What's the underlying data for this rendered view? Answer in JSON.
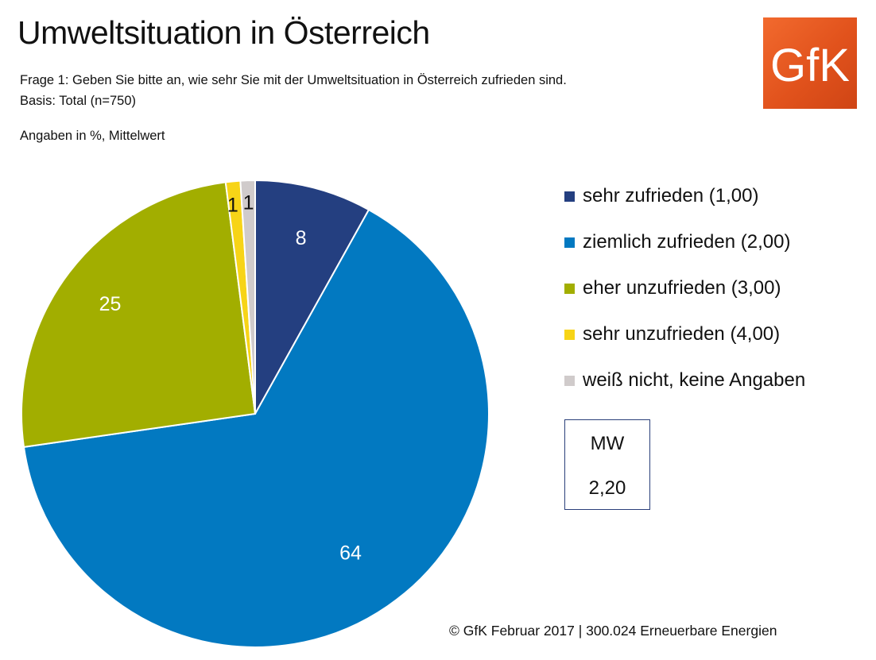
{
  "header": {
    "title": "Umweltsituation in Österreich",
    "question": "Frage 1: Geben Sie bitte an, wie sehr Sie mit der Umweltsituation in Österreich zufrieden sind.",
    "basis": "Basis: Total (n=750)",
    "units_note": "Angaben in %, Mittelwert"
  },
  "logo": {
    "text": "GfK",
    "color": "#e35a21"
  },
  "chart_data": {
    "type": "pie",
    "title": "Umweltsituation in Österreich",
    "units": "%",
    "start_angle_deg": 0,
    "direction": "clockwise",
    "slices": [
      {
        "label": "sehr zufrieden (1,00)",
        "value": 8,
        "display": "8",
        "color": "#243f80",
        "label_color": "#ffffff"
      },
      {
        "label": "ziemlich zufrieden (2,00)",
        "value": 64,
        "display": "64",
        "color": "#0279c1",
        "label_color": "#ffffff"
      },
      {
        "label": "eher unzufrieden (3,00)",
        "value": 25,
        "display": "25",
        "color": "#a2ae00",
        "label_color": "#ffffff"
      },
      {
        "label": "sehr unzufrieden (4,00)",
        "value": 1,
        "display": "1",
        "color": "#f7d417",
        "label_color": "#111111"
      },
      {
        "label": "weiß nicht, keine Angaben",
        "value": 1,
        "display": "1",
        "color": "#d0cbcb",
        "label_color": "#111111"
      }
    ],
    "legend_position": "right"
  },
  "mean_box": {
    "label": "MW",
    "value": "2,20"
  },
  "footer": "© GfK Februar 2017 | 300.024 Erneuerbare Energien"
}
